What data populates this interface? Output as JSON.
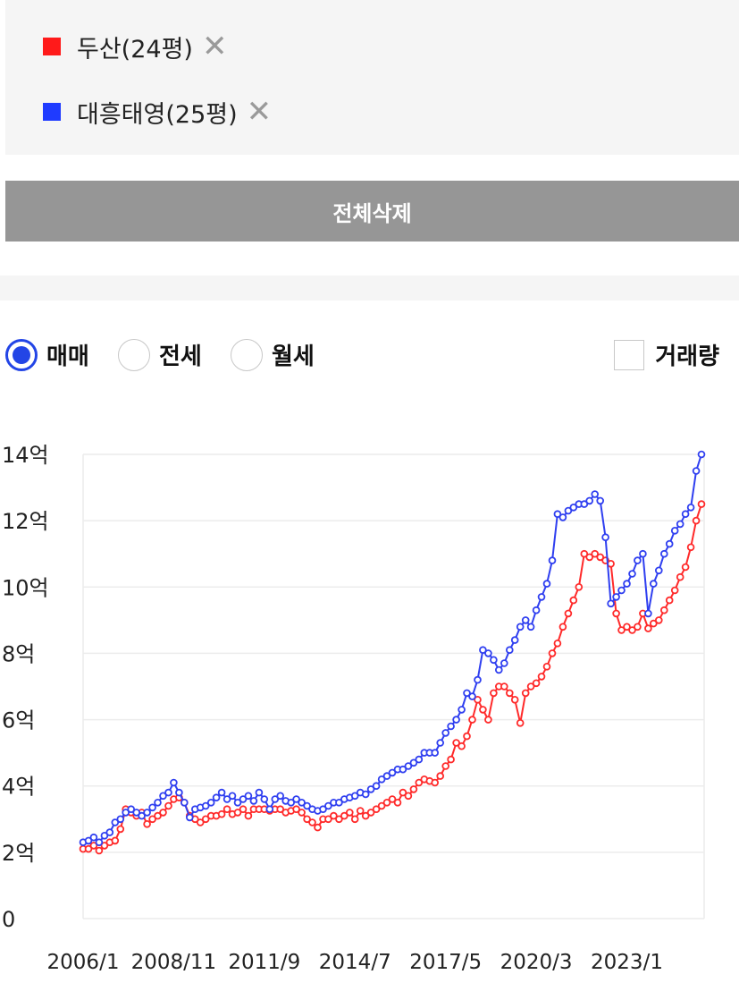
{
  "compare": {
    "items": [
      {
        "label": "두산(24평)",
        "color": "#ff1a1a",
        "remove_icon": "close-icon"
      },
      {
        "label": "대흥태영(25평)",
        "color": "#1f3bff",
        "remove_icon": "close-icon"
      }
    ],
    "delete_all_label": "전체삭제"
  },
  "filters": {
    "options": [
      {
        "label": "매매",
        "selected": true
      },
      {
        "label": "전세",
        "selected": false
      },
      {
        "label": "월세",
        "selected": false
      }
    ],
    "volume_label": "거래량",
    "volume_checked": false
  },
  "chart_data": {
    "type": "line",
    "y_unit": "억",
    "ylim": [
      0,
      14
    ],
    "yticks": [
      {
        "value": 0,
        "label": "0"
      },
      {
        "value": 2,
        "label": "2억"
      },
      {
        "value": 4,
        "label": "4억"
      },
      {
        "value": 6,
        "label": "6억"
      },
      {
        "value": 8,
        "label": "8억"
      },
      {
        "value": 10,
        "label": "10억"
      },
      {
        "value": 12,
        "label": "12억"
      },
      {
        "value": 14,
        "label": "14억"
      }
    ],
    "xlim": [
      "2006-01",
      "2025-06"
    ],
    "xticks": [
      "2006/1",
      "2008/11",
      "2011/9",
      "2014/7",
      "2017/5",
      "2020/3",
      "2023/1"
    ],
    "grid": true,
    "series": [
      {
        "name": "두산(24평)",
        "color": "#ff2a2a",
        "points": [
          [
            "2006-01",
            2.1
          ],
          [
            "2006-03",
            2.1
          ],
          [
            "2006-05",
            2.2
          ],
          [
            "2006-07",
            2.05
          ],
          [
            "2006-09",
            2.2
          ],
          [
            "2006-11",
            2.3
          ],
          [
            "2007-01",
            2.35
          ],
          [
            "2007-03",
            2.7
          ],
          [
            "2007-05",
            3.3
          ],
          [
            "2007-07",
            3.2
          ],
          [
            "2007-09",
            3.1
          ],
          [
            "2007-11",
            3.2
          ],
          [
            "2008-01",
            2.85
          ],
          [
            "2008-03",
            3.0
          ],
          [
            "2008-05",
            3.1
          ],
          [
            "2008-07",
            3.2
          ],
          [
            "2008-09",
            3.4
          ],
          [
            "2008-11",
            3.6
          ],
          [
            "2009-01",
            3.65
          ],
          [
            "2009-03",
            3.5
          ],
          [
            "2009-05",
            3.1
          ],
          [
            "2009-07",
            3.0
          ],
          [
            "2009-09",
            2.9
          ],
          [
            "2009-11",
            3.0
          ],
          [
            "2010-01",
            3.1
          ],
          [
            "2010-03",
            3.1
          ],
          [
            "2010-05",
            3.15
          ],
          [
            "2010-07",
            3.3
          ],
          [
            "2010-09",
            3.15
          ],
          [
            "2010-11",
            3.2
          ],
          [
            "2011-01",
            3.3
          ],
          [
            "2011-03",
            3.1
          ],
          [
            "2011-05",
            3.3
          ],
          [
            "2011-07",
            3.3
          ],
          [
            "2011-09",
            3.3
          ],
          [
            "2011-11",
            3.25
          ],
          [
            "2012-01",
            3.3
          ],
          [
            "2012-03",
            3.3
          ],
          [
            "2012-05",
            3.2
          ],
          [
            "2012-07",
            3.25
          ],
          [
            "2012-09",
            3.3
          ],
          [
            "2012-11",
            3.2
          ],
          [
            "2013-01",
            3.0
          ],
          [
            "2013-03",
            2.9
          ],
          [
            "2013-05",
            2.75
          ],
          [
            "2013-07",
            3.0
          ],
          [
            "2013-09",
            3.0
          ],
          [
            "2013-11",
            3.1
          ],
          [
            "2014-01",
            3.0
          ],
          [
            "2014-03",
            3.1
          ],
          [
            "2014-05",
            3.2
          ],
          [
            "2014-07",
            3.0
          ],
          [
            "2014-09",
            3.25
          ],
          [
            "2014-11",
            3.1
          ],
          [
            "2015-01",
            3.2
          ],
          [
            "2015-03",
            3.3
          ],
          [
            "2015-05",
            3.4
          ],
          [
            "2015-07",
            3.5
          ],
          [
            "2015-09",
            3.6
          ],
          [
            "2015-11",
            3.5
          ],
          [
            "2016-01",
            3.8
          ],
          [
            "2016-03",
            3.7
          ],
          [
            "2016-05",
            3.9
          ],
          [
            "2016-07",
            4.1
          ],
          [
            "2016-09",
            4.2
          ],
          [
            "2016-11",
            4.15
          ],
          [
            "2017-01",
            4.1
          ],
          [
            "2017-03",
            4.3
          ],
          [
            "2017-05",
            4.6
          ],
          [
            "2017-07",
            4.8
          ],
          [
            "2017-09",
            5.3
          ],
          [
            "2017-11",
            5.2
          ],
          [
            "2018-01",
            5.5
          ],
          [
            "2018-03",
            6.0
          ],
          [
            "2018-05",
            6.6
          ],
          [
            "2018-07",
            6.3
          ],
          [
            "2018-09",
            6.0
          ],
          [
            "2018-11",
            6.8
          ],
          [
            "2019-01",
            7.0
          ],
          [
            "2019-03",
            7.0
          ],
          [
            "2019-05",
            6.8
          ],
          [
            "2019-07",
            6.6
          ],
          [
            "2019-09",
            5.9
          ],
          [
            "2019-11",
            6.8
          ],
          [
            "2020-01",
            7.0
          ],
          [
            "2020-03",
            7.1
          ],
          [
            "2020-05",
            7.3
          ],
          [
            "2020-07",
            7.6
          ],
          [
            "2020-09",
            8.0
          ],
          [
            "2020-11",
            8.3
          ],
          [
            "2021-01",
            8.8
          ],
          [
            "2021-03",
            9.2
          ],
          [
            "2021-05",
            9.6
          ],
          [
            "2021-07",
            10.0
          ],
          [
            "2021-09",
            11.0
          ],
          [
            "2021-11",
            10.9
          ],
          [
            "2022-01",
            11.0
          ],
          [
            "2022-03",
            10.9
          ],
          [
            "2022-05",
            10.8
          ],
          [
            "2022-07",
            10.7
          ],
          [
            "2022-09",
            9.2
          ],
          [
            "2022-11",
            8.7
          ],
          [
            "2023-01",
            8.8
          ],
          [
            "2023-03",
            8.7
          ],
          [
            "2023-05",
            8.8
          ],
          [
            "2023-07",
            9.2
          ],
          [
            "2023-09",
            8.75
          ],
          [
            "2023-11",
            8.9
          ],
          [
            "2024-01",
            9.0
          ],
          [
            "2024-03",
            9.3
          ],
          [
            "2024-05",
            9.6
          ],
          [
            "2024-07",
            9.9
          ],
          [
            "2024-09",
            10.3
          ],
          [
            "2024-11",
            10.6
          ],
          [
            "2025-01",
            11.2
          ],
          [
            "2025-03",
            12.0
          ],
          [
            "2025-05",
            12.5
          ]
        ]
      },
      {
        "name": "대흥태영(25평)",
        "color": "#2f3ff0",
        "points": [
          [
            "2006-01",
            2.3
          ],
          [
            "2006-03",
            2.35
          ],
          [
            "2006-05",
            2.45
          ],
          [
            "2006-07",
            2.3
          ],
          [
            "2006-09",
            2.5
          ],
          [
            "2006-11",
            2.6
          ],
          [
            "2007-01",
            2.9
          ],
          [
            "2007-03",
            3.0
          ],
          [
            "2007-05",
            3.2
          ],
          [
            "2007-07",
            3.3
          ],
          [
            "2007-09",
            3.2
          ],
          [
            "2007-11",
            3.1
          ],
          [
            "2008-01",
            3.2
          ],
          [
            "2008-03",
            3.35
          ],
          [
            "2008-05",
            3.5
          ],
          [
            "2008-07",
            3.7
          ],
          [
            "2008-09",
            3.8
          ],
          [
            "2008-11",
            4.1
          ],
          [
            "2009-01",
            3.8
          ],
          [
            "2009-03",
            3.5
          ],
          [
            "2009-05",
            3.05
          ],
          [
            "2009-07",
            3.3
          ],
          [
            "2009-09",
            3.35
          ],
          [
            "2009-11",
            3.4
          ],
          [
            "2010-01",
            3.5
          ],
          [
            "2010-03",
            3.65
          ],
          [
            "2010-05",
            3.8
          ],
          [
            "2010-07",
            3.6
          ],
          [
            "2010-09",
            3.7
          ],
          [
            "2010-11",
            3.5
          ],
          [
            "2011-01",
            3.6
          ],
          [
            "2011-03",
            3.7
          ],
          [
            "2011-05",
            3.55
          ],
          [
            "2011-07",
            3.8
          ],
          [
            "2011-09",
            3.6
          ],
          [
            "2011-11",
            3.3
          ],
          [
            "2012-01",
            3.6
          ],
          [
            "2012-03",
            3.7
          ],
          [
            "2012-05",
            3.55
          ],
          [
            "2012-07",
            3.5
          ],
          [
            "2012-09",
            3.6
          ],
          [
            "2012-11",
            3.5
          ],
          [
            "2013-01",
            3.4
          ],
          [
            "2013-03",
            3.3
          ],
          [
            "2013-05",
            3.25
          ],
          [
            "2013-07",
            3.3
          ],
          [
            "2013-09",
            3.4
          ],
          [
            "2013-11",
            3.5
          ],
          [
            "2014-01",
            3.5
          ],
          [
            "2014-03",
            3.6
          ],
          [
            "2014-05",
            3.65
          ],
          [
            "2014-07",
            3.7
          ],
          [
            "2014-09",
            3.8
          ],
          [
            "2014-11",
            3.75
          ],
          [
            "2015-01",
            3.9
          ],
          [
            "2015-03",
            4.0
          ],
          [
            "2015-05",
            4.2
          ],
          [
            "2015-07",
            4.3
          ],
          [
            "2015-09",
            4.4
          ],
          [
            "2015-11",
            4.5
          ],
          [
            "2016-01",
            4.5
          ],
          [
            "2016-03",
            4.6
          ],
          [
            "2016-05",
            4.7
          ],
          [
            "2016-07",
            4.8
          ],
          [
            "2016-09",
            5.0
          ],
          [
            "2016-11",
            5.0
          ],
          [
            "2017-01",
            5.0
          ],
          [
            "2017-03",
            5.3
          ],
          [
            "2017-05",
            5.6
          ],
          [
            "2017-07",
            5.8
          ],
          [
            "2017-09",
            6.0
          ],
          [
            "2017-11",
            6.3
          ],
          [
            "2018-01",
            6.8
          ],
          [
            "2018-03",
            6.7
          ],
          [
            "2018-05",
            7.2
          ],
          [
            "2018-07",
            8.1
          ],
          [
            "2018-09",
            8.0
          ],
          [
            "2018-11",
            7.8
          ],
          [
            "2019-01",
            7.5
          ],
          [
            "2019-03",
            7.7
          ],
          [
            "2019-05",
            8.1
          ],
          [
            "2019-07",
            8.4
          ],
          [
            "2019-09",
            8.8
          ],
          [
            "2019-11",
            9.0
          ],
          [
            "2020-01",
            8.8
          ],
          [
            "2020-03",
            9.3
          ],
          [
            "2020-05",
            9.7
          ],
          [
            "2020-07",
            10.1
          ],
          [
            "2020-09",
            10.8
          ],
          [
            "2020-11",
            12.2
          ],
          [
            "2021-01",
            12.1
          ],
          [
            "2021-03",
            12.3
          ],
          [
            "2021-05",
            12.4
          ],
          [
            "2021-07",
            12.5
          ],
          [
            "2021-09",
            12.5
          ],
          [
            "2021-11",
            12.6
          ],
          [
            "2022-01",
            12.8
          ],
          [
            "2022-03",
            12.6
          ],
          [
            "2022-05",
            11.5
          ],
          [
            "2022-07",
            9.5
          ],
          [
            "2022-09",
            9.7
          ],
          [
            "2022-11",
            9.9
          ],
          [
            "2023-01",
            10.1
          ],
          [
            "2023-03",
            10.4
          ],
          [
            "2023-05",
            10.8
          ],
          [
            "2023-07",
            11.0
          ],
          [
            "2023-09",
            9.2
          ],
          [
            "2023-11",
            10.1
          ],
          [
            "2024-01",
            10.5
          ],
          [
            "2024-03",
            11.0
          ],
          [
            "2024-05",
            11.3
          ],
          [
            "2024-07",
            11.7
          ],
          [
            "2024-09",
            11.9
          ],
          [
            "2024-11",
            12.2
          ],
          [
            "2025-01",
            12.4
          ],
          [
            "2025-03",
            13.5
          ],
          [
            "2025-05",
            14.0
          ]
        ]
      }
    ]
  }
}
